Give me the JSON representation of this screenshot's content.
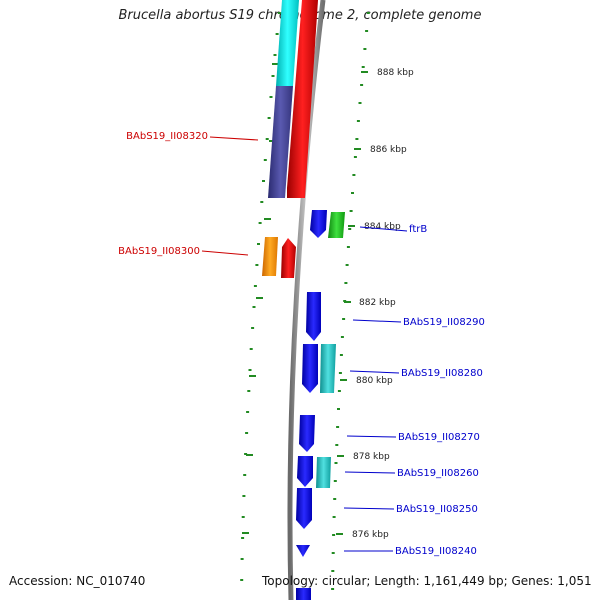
{
  "title": "Brucella abortus S19 chromosome 2, complete genome",
  "accession": "Accession: NC_010740",
  "topology": "Topology: circular; Length: 1,161,449 bp; Genes: 1,051",
  "colors": {
    "red": "#ff0000",
    "cyan": "#00e5e5",
    "navy": "#4a4a96",
    "blue": "#0000ff",
    "teal": "#30cccc",
    "green": "#22cc22",
    "orange": "#ff9900",
    "dots": "#228b22",
    "backbone": "#8a8a8a",
    "label_red": "#cc0000",
    "label_blue": "#0000cc"
  },
  "ticks": [
    "888 kbp",
    "886 kbp",
    "884 kbp",
    "882 kbp",
    "880 kbp",
    "878 kbp",
    "876 kbp"
  ],
  "gene_labels_left": [
    "BAbS19_II08320",
    "BAbS19_II08300"
  ],
  "gene_labels_right": [
    "ftrB",
    "BAbS19_II08290",
    "BAbS19_II08280",
    "BAbS19_II08270",
    "BAbS19_II08260",
    "BAbS19_II08250",
    "BAbS19_II08240"
  ]
}
